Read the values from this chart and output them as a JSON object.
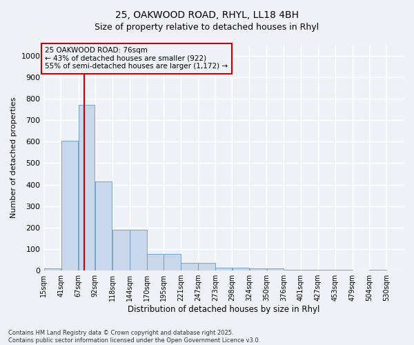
{
  "title_line1": "25, OAKWOOD ROAD, RHYL, LL18 4BH",
  "title_line2": "Size of property relative to detached houses in Rhyl",
  "xlabel": "Distribution of detached houses by size in Rhyl",
  "ylabel": "Number of detached properties",
  "annotation_line1": "25 OAKWOOD ROAD: 76sqm",
  "annotation_line2": "← 43% of detached houses are smaller (922)",
  "annotation_line3": "55% of semi-detached houses are larger (1,172) →",
  "bar_left_edges": [
    15,
    41,
    67,
    92,
    118,
    144,
    170,
    195,
    221,
    247,
    273,
    298,
    324,
    350,
    376,
    401,
    427,
    453,
    479,
    504
  ],
  "bar_widths": [
    26,
    26,
    25,
    26,
    26,
    26,
    25,
    26,
    26,
    26,
    25,
    26,
    26,
    26,
    25,
    26,
    26,
    26,
    25,
    26
  ],
  "bar_heights": [
    10,
    605,
    770,
    415,
    190,
    190,
    78,
    78,
    35,
    35,
    13,
    13,
    10,
    10,
    5,
    5,
    3,
    3,
    2,
    5
  ],
  "tick_labels": [
    "15sqm",
    "41sqm",
    "67sqm",
    "92sqm",
    "118sqm",
    "144sqm",
    "170sqm",
    "195sqm",
    "221sqm",
    "247sqm",
    "273sqm",
    "298sqm",
    "324sqm",
    "350sqm",
    "376sqm",
    "401sqm",
    "427sqm",
    "453sqm",
    "479sqm",
    "504sqm",
    "530sqm"
  ],
  "tick_positions": [
    15,
    41,
    67,
    92,
    118,
    144,
    170,
    195,
    221,
    247,
    273,
    298,
    324,
    350,
    376,
    401,
    427,
    453,
    479,
    504,
    530
  ],
  "bar_color": "#c8d8ea",
  "bar_edge_color": "#6699bb",
  "vline_x": 76,
  "vline_color": "#cc0000",
  "ylim": [
    0,
    1050
  ],
  "xlim": [
    15,
    556
  ],
  "yticks": [
    0,
    100,
    200,
    300,
    400,
    500,
    600,
    700,
    800,
    900,
    1000
  ],
  "bg_color": "#eef2f7",
  "grid_color": "#ffffff",
  "footer_line1": "Contains HM Land Registry data © Crown copyright and database right 2025.",
  "footer_line2": "Contains public sector information licensed under the Open Government Licence v3.0."
}
